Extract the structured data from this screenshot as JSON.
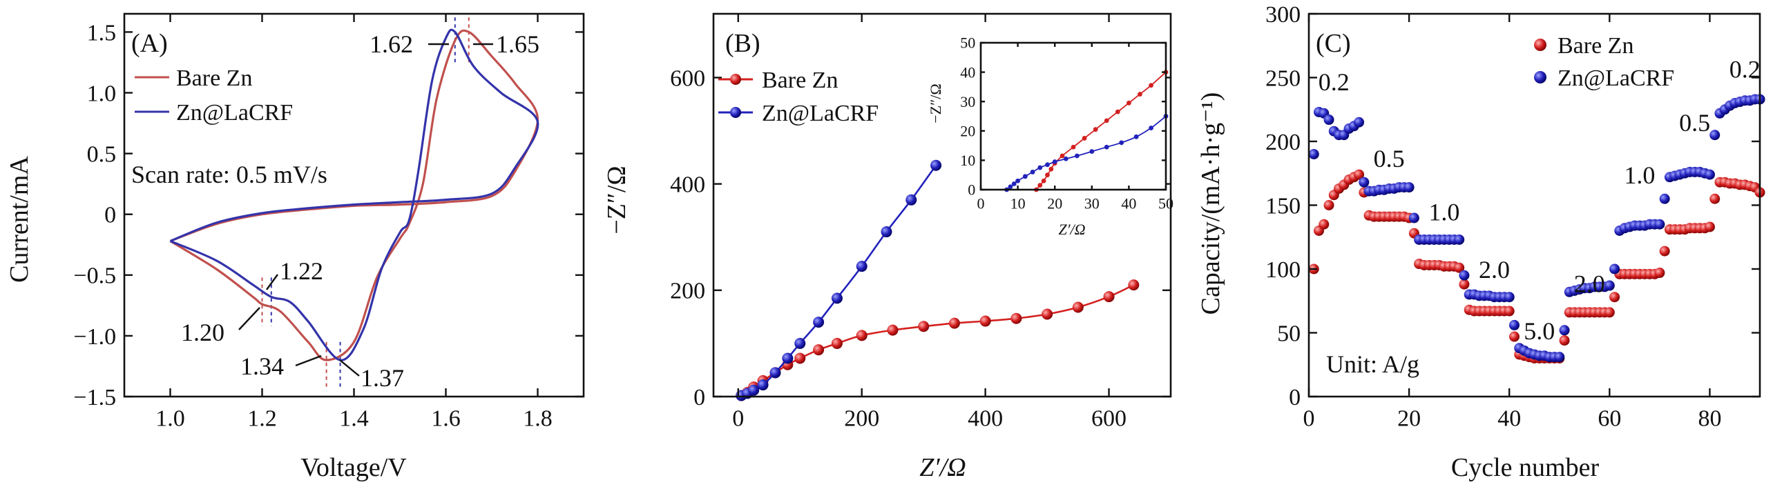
{
  "chart_data": [
    {
      "type": "line",
      "panel_label": "(A)",
      "title": "",
      "xlabel": "Voltage/V",
      "ylabel": "Current/mA",
      "xlim": [
        0.9,
        1.9
      ],
      "ylim": [
        -1.5,
        1.65
      ],
      "xticks": [
        1.0,
        1.2,
        1.4,
        1.6,
        1.8
      ],
      "xtick_labels": [
        "1.0",
        "1.2",
        "1.4",
        "1.6",
        "1.8"
      ],
      "yticks": [
        -1.5,
        -1.0,
        -0.5,
        0,
        0.5,
        1.0,
        1.5
      ],
      "ytick_labels": [
        "−1.5",
        "−1.0",
        "−0.5",
        "0",
        "0.5",
        "1.0",
        "1.5"
      ],
      "note": "Scan rate: 0.5 mV/s",
      "legend": "top-left",
      "series": [
        {
          "name": "Bare Zn",
          "color": "#c0504d",
          "x": [
            1.0,
            1.1,
            1.18,
            1.2,
            1.24,
            1.3,
            1.34,
            1.4,
            1.45,
            1.5,
            1.52,
            1.55,
            1.58,
            1.62,
            1.65,
            1.7,
            1.75,
            1.8,
            1.75,
            1.7,
            1.6,
            1.5,
            1.4,
            1.3,
            1.2,
            1.1,
            1.0
          ],
          "y": [
            -0.22,
            -0.45,
            -0.68,
            -0.74,
            -0.8,
            -1.05,
            -1.2,
            -1.05,
            -0.52,
            -0.2,
            -0.08,
            0.25,
            0.95,
            1.43,
            1.5,
            1.3,
            1.08,
            0.78,
            0.35,
            0.15,
            0.1,
            0.08,
            0.07,
            0.04,
            0.0,
            -0.08,
            -0.22
          ]
        },
        {
          "name": "Zn@LaCRF",
          "color": "#3333aa",
          "x": [
            1.0,
            1.1,
            1.18,
            1.22,
            1.26,
            1.3,
            1.37,
            1.42,
            1.46,
            1.5,
            1.52,
            1.54,
            1.57,
            1.6,
            1.62,
            1.66,
            1.72,
            1.8,
            1.75,
            1.7,
            1.6,
            1.5,
            1.4,
            1.3,
            1.2,
            1.1,
            1.0
          ],
          "y": [
            -0.22,
            -0.38,
            -0.58,
            -0.68,
            -0.72,
            -0.88,
            -1.2,
            -0.95,
            -0.45,
            -0.15,
            -0.05,
            0.35,
            1.1,
            1.45,
            1.5,
            1.22,
            1.0,
            0.76,
            0.38,
            0.17,
            0.12,
            0.1,
            0.08,
            0.05,
            0.01,
            -0.07,
            -0.22
          ]
        }
      ],
      "annotations": [
        {
          "text": "1.62",
          "x": 1.62,
          "y": 1.5
        },
        {
          "text": "1.65",
          "x": 1.65,
          "y": 1.5
        },
        {
          "text": "1.22",
          "x": 1.22,
          "y": -0.68
        },
        {
          "text": "1.20",
          "x": 1.2,
          "y": -0.74
        },
        {
          "text": "1.34",
          "x": 1.34,
          "y": -1.2
        },
        {
          "text": "1.37",
          "x": 1.37,
          "y": -1.2
        }
      ]
    },
    {
      "type": "scatter",
      "panel_label": "(B)",
      "title": "",
      "xlabel": "Z′/Ω",
      "ylabel": "−Z″/Ω",
      "xlim": [
        -40,
        700
      ],
      "ylim": [
        0,
        720
      ],
      "xticks": [
        0,
        200,
        400,
        600
      ],
      "xtick_labels": [
        "0",
        "200",
        "400",
        "600"
      ],
      "yticks": [
        0,
        200,
        400,
        600
      ],
      "ytick_labels": [
        "0",
        "200",
        "400",
        "600"
      ],
      "legend": "top-left",
      "series": [
        {
          "name": "Bare Zn",
          "color": "#d42020",
          "x": [
            5,
            15,
            25,
            40,
            60,
            80,
            100,
            130,
            160,
            200,
            250,
            300,
            350,
            400,
            450,
            500,
            550,
            600,
            640
          ],
          "y": [
            2,
            8,
            18,
            30,
            45,
            60,
            72,
            88,
            100,
            115,
            125,
            132,
            138,
            142,
            147,
            155,
            168,
            188,
            210
          ]
        },
        {
          "name": "Zn@LaCRF",
          "color": "#2222bb",
          "x": [
            5,
            15,
            25,
            40,
            60,
            80,
            100,
            130,
            160,
            200,
            240,
            280,
            320
          ],
          "y": [
            2,
            6,
            12,
            22,
            45,
            72,
            100,
            140,
            185,
            245,
            310,
            370,
            435
          ]
        }
      ],
      "inset": {
        "xlabel": "Z′/Ω",
        "ylabel": "−Z″/Ω",
        "xlim": [
          0,
          50
        ],
        "ylim": [
          0,
          50
        ],
        "xticks": [
          0,
          10,
          20,
          30,
          40,
          50
        ],
        "xtick_labels": [
          "0",
          "10",
          "20",
          "30",
          "40",
          "50"
        ],
        "yticks": [
          0,
          10,
          20,
          30,
          40,
          50
        ],
        "ytick_labels": [
          "0",
          "10",
          "20",
          "30",
          "40",
          "50"
        ],
        "series": [
          {
            "name": "Bare Zn",
            "color": "#d42020",
            "x": [
              15,
              16,
              17,
              18,
              19,
              20,
              22,
              25,
              28,
              31,
              34,
              37,
              40,
              43,
              46,
              50
            ],
            "y": [
              0,
              1.5,
              3,
              5,
              7,
              9,
              11.5,
              14.5,
              17.5,
              20.5,
              23.5,
              26.5,
              29.5,
              32.5,
              35.5,
              40
            ]
          },
          {
            "name": "Zn@LaCRF",
            "color": "#2222bb",
            "x": [
              7,
              8,
              9,
              10,
              12,
              14,
              16,
              18,
              20,
              23,
              26,
              30,
              34,
              38,
              42,
              46,
              50
            ],
            "y": [
              0,
              1,
              2,
              3,
              4.5,
              6,
              7.5,
              8.5,
              9.5,
              10.5,
              11.5,
              13,
              14.5,
              16,
              18,
              21,
              25
            ]
          }
        ]
      }
    },
    {
      "type": "scatter",
      "panel_label": "(C)",
      "title": "",
      "xlabel": "Cycle number",
      "ylabel": "Capacity/(mA·h·g⁻¹)",
      "xlim": [
        0,
        90
      ],
      "ylim": [
        0,
        300
      ],
      "xticks": [
        0,
        20,
        40,
        60,
        80
      ],
      "xtick_labels": [
        "0",
        "20",
        "40",
        "60",
        "80"
      ],
      "yticks": [
        0,
        50,
        100,
        150,
        200,
        250,
        300
      ],
      "ytick_labels": [
        "0",
        "50",
        "100",
        "150",
        "200",
        "250",
        "300"
      ],
      "legend": "top-center",
      "note": "Unit: A/g",
      "series": [
        {
          "name": "Bare Zn",
          "color": "#d42020",
          "values": [
            100,
            130,
            135,
            150,
            158,
            163,
            166,
            170,
            172,
            174,
            160,
            142,
            141,
            141,
            141,
            141,
            141,
            141,
            141,
            140,
            128,
            104,
            103,
            103,
            103,
            103,
            102,
            102,
            102,
            101,
            88,
            68,
            67,
            67,
            67,
            67,
            67,
            67,
            67,
            67,
            47,
            33,
            32,
            31,
            30,
            30,
            30,
            30,
            30,
            30,
            44,
            66,
            66,
            66,
            66,
            66,
            66,
            66,
            66,
            66,
            78,
            96,
            96,
            96,
            96,
            96,
            96,
            96,
            96,
            97,
            114,
            131,
            131,
            131,
            131,
            132,
            132,
            132,
            132,
            133,
            155,
            168,
            168,
            167,
            167,
            166,
            166,
            165,
            164,
            160
          ]
        },
        {
          "name": "Zn@LaCRF",
          "color": "#2222bb",
          "values": [
            190,
            223,
            222,
            217,
            208,
            205,
            205,
            210,
            212,
            215,
            168,
            161,
            161,
            162,
            162,
            163,
            163,
            164,
            164,
            164,
            140,
            123,
            123,
            123,
            123,
            123,
            123,
            123,
            123,
            123,
            95,
            80,
            80,
            79,
            79,
            79,
            78,
            78,
            78,
            78,
            56,
            38,
            36,
            34,
            33,
            32,
            32,
            31,
            31,
            31,
            52,
            82,
            83,
            84,
            85,
            85,
            86,
            86,
            86,
            87,
            100,
            130,
            132,
            133,
            134,
            134,
            134,
            135,
            135,
            135,
            155,
            172,
            173,
            174,
            175,
            176,
            176,
            176,
            175,
            174,
            205,
            222,
            225,
            228,
            230,
            231,
            232,
            232,
            233,
            233
          ]
        }
      ],
      "rate_labels": [
        {
          "text": "0.2",
          "cycle": 5,
          "cap": 240
        },
        {
          "text": "0.5",
          "cycle": 16,
          "cap": 180
        },
        {
          "text": "1.0",
          "cycle": 27,
          "cap": 138
        },
        {
          "text": "2.0",
          "cycle": 37,
          "cap": 93
        },
        {
          "text": "5.0",
          "cycle": 46,
          "cap": 45
        },
        {
          "text": "2.0",
          "cycle": 56,
          "cap": 82
        },
        {
          "text": "1.0",
          "cycle": 66,
          "cap": 167
        },
        {
          "text": "0.5",
          "cycle": 77,
          "cap": 208
        },
        {
          "text": "0.2",
          "cycle": 87,
          "cap": 250
        }
      ]
    }
  ]
}
